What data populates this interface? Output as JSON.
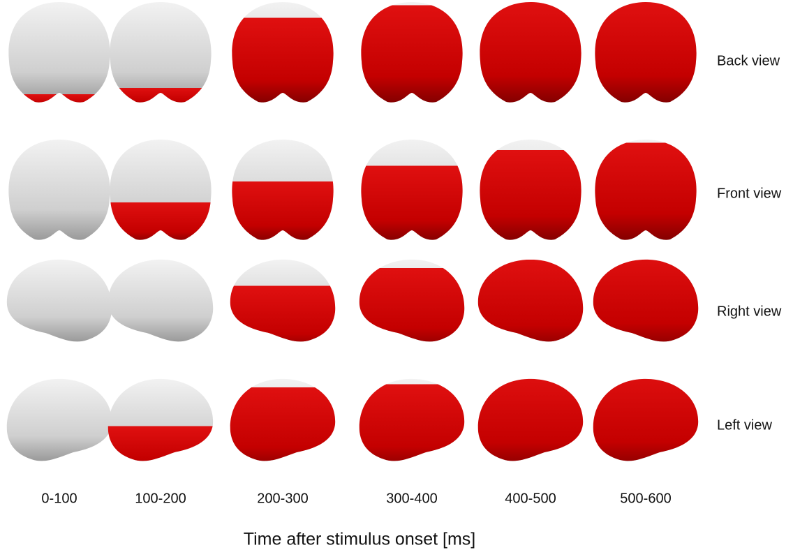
{
  "figure": {
    "row_labels": [
      "Back view",
      "Front view",
      "Right view",
      "Left view"
    ],
    "column_labels": [
      "0-100",
      "100-200",
      "200-300",
      "300-400",
      "400-500",
      "500-600"
    ],
    "axis_title": "Time after stimulus onset [ms]"
  }
}
